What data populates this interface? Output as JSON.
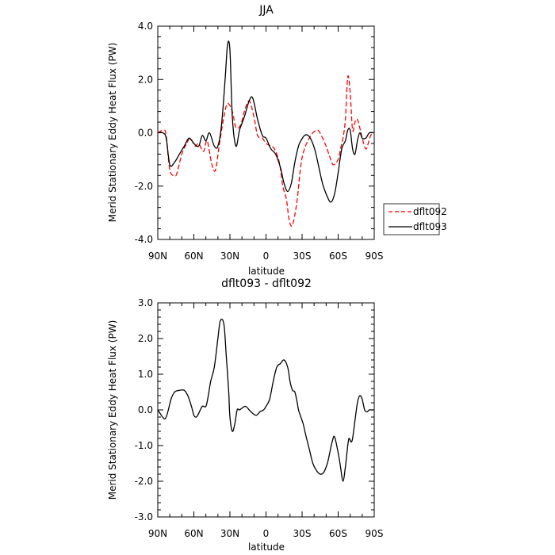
{
  "chart_data": [
    {
      "type": "line",
      "title": "JJA",
      "xlabel": "latitude",
      "ylabel": "Merid Stationary Eddy Heat Flux (PW)",
      "xlim": [
        -90,
        90
      ],
      "ylim": [
        -4,
        4
      ],
      "x_ticks": [
        -90,
        -60,
        -30,
        0,
        30,
        60,
        90
      ],
      "x_tick_labels": [
        "90N",
        "60N",
        "30N",
        "0",
        "30S",
        "60S",
        "90S"
      ],
      "y_ticks": [
        -4,
        -2,
        0,
        2,
        4
      ],
      "y_tick_labels": [
        "-4.0",
        "-2.0",
        "0.0",
        "2.0",
        "4.0"
      ],
      "legend_position": "right",
      "series": [
        {
          "name": "dflt092",
          "color": "#ff0000",
          "dash": "dashed",
          "x": [
            -90,
            -85,
            -83,
            -80,
            -76,
            -74,
            -70,
            -66,
            -63,
            -59,
            -56,
            -52,
            -49,
            -45,
            -42,
            -39,
            -35,
            -32,
            -28,
            -25,
            -21,
            -18,
            -14,
            -10,
            -7,
            -3,
            0,
            4,
            7,
            11,
            14,
            17,
            19,
            21,
            23,
            26,
            29,
            32,
            36,
            39,
            43,
            46,
            50,
            53,
            56,
            60,
            62,
            64,
            66,
            68,
            70,
            72,
            74,
            76,
            79,
            80,
            83,
            85,
            87,
            90
          ],
          "y": [
            0.0,
            0.1,
            -0.1,
            -1.4,
            -1.6,
            -1.5,
            -0.8,
            -0.4,
            -0.2,
            -0.5,
            -0.4,
            -0.7,
            -0.3,
            -1.2,
            -1.4,
            -0.5,
            0.6,
            1.1,
            0.8,
            0.2,
            0.3,
            0.8,
            1.2,
            0.6,
            -0.1,
            -0.2,
            -0.4,
            -0.5,
            -0.6,
            -1.1,
            -2.0,
            -2.5,
            -3.2,
            -3.5,
            -3.3,
            -2.5,
            -1.2,
            -0.6,
            -0.2,
            0.0,
            0.1,
            -0.1,
            -0.5,
            -0.9,
            -1.2,
            -1.0,
            -0.6,
            -0.2,
            0.5,
            2.1,
            1.5,
            0.1,
            0.4,
            0.5,
            0.0,
            -0.2,
            -0.6,
            -0.4,
            -0.1,
            0.0
          ]
        },
        {
          "name": "dflt093",
          "color": "#000000",
          "dash": "solid",
          "x": [
            -90,
            -86,
            -83,
            -80,
            -76,
            -72,
            -68,
            -64,
            -60,
            -56,
            -53,
            -50,
            -47,
            -43,
            -40,
            -37,
            -34,
            -32,
            -30,
            -28,
            -25,
            -22,
            -18,
            -14,
            -11,
            -7,
            -3,
            0,
            4,
            8,
            12,
            15,
            18,
            21,
            24,
            27,
            29,
            32,
            35,
            38,
            41,
            44,
            47,
            51,
            54,
            57,
            60,
            63,
            66,
            68,
            70,
            72,
            74,
            76,
            78,
            80,
            83,
            86,
            90
          ],
          "y": [
            0.0,
            0.0,
            -0.2,
            -1.2,
            -1.1,
            -0.8,
            -0.5,
            -0.2,
            -0.4,
            -0.5,
            -0.1,
            -0.3,
            0.0,
            -0.5,
            -0.5,
            0.3,
            2.0,
            3.3,
            3.1,
            0.6,
            -0.5,
            0.1,
            0.6,
            1.2,
            1.3,
            0.5,
            -0.1,
            -0.2,
            -0.6,
            -0.8,
            -1.3,
            -1.9,
            -2.2,
            -1.9,
            -1.1,
            -0.5,
            -0.3,
            -0.1,
            -0.1,
            -0.3,
            -0.7,
            -1.3,
            -1.9,
            -2.4,
            -2.6,
            -2.3,
            -1.5,
            -0.6,
            -0.3,
            0.1,
            0.1,
            -0.6,
            -0.8,
            -0.3,
            0.0,
            -0.2,
            -0.2,
            0.0,
            0.0
          ]
        }
      ]
    },
    {
      "type": "line",
      "title": "dflt093 - dflt092",
      "xlabel": "latitude",
      "ylabel": "Merid Stationary Eddy Heat Flux (PW)",
      "xlim": [
        -90,
        90
      ],
      "ylim": [
        -3,
        3
      ],
      "x_ticks": [
        -90,
        -60,
        -30,
        0,
        30,
        60,
        90
      ],
      "x_tick_labels": [
        "90N",
        "60N",
        "30N",
        "0",
        "30S",
        "60S",
        "90S"
      ],
      "y_ticks": [
        -3,
        -2,
        -1,
        0,
        1,
        2,
        3
      ],
      "y_tick_labels": [
        "-3.0",
        "-2.0",
        "-1.0",
        "0.0",
        "1.0",
        "2.0",
        "3.0"
      ],
      "series": [
        {
          "color": "#000000",
          "dash": "solid",
          "x": [
            -90,
            -88,
            -86,
            -84,
            -82,
            -79,
            -76,
            -72,
            -68,
            -65,
            -62,
            -60,
            -58,
            -56,
            -53,
            -50,
            -48,
            -46,
            -43,
            -40,
            -38,
            -35,
            -33,
            -31,
            -30,
            -28,
            -26,
            -24,
            -22,
            -20,
            -17,
            -14,
            -11,
            -8,
            -5,
            -2,
            0,
            3,
            6,
            9,
            12,
            15,
            18,
            20,
            22,
            24,
            26,
            27,
            29,
            31,
            33,
            36,
            39,
            42,
            45,
            48,
            51,
            53,
            55,
            57,
            60,
            62,
            64,
            66,
            68,
            69,
            70,
            71,
            72,
            74,
            76,
            78,
            80,
            82,
            84,
            86,
            88,
            90
          ],
          "y": [
            0.0,
            -0.1,
            -0.2,
            -0.25,
            -0.1,
            0.3,
            0.5,
            0.55,
            0.55,
            0.4,
            0.1,
            -0.15,
            -0.2,
            -0.1,
            0.1,
            0.1,
            0.4,
            0.8,
            1.2,
            2.0,
            2.5,
            2.4,
            1.5,
            0.5,
            -0.2,
            -0.6,
            -0.4,
            0.0,
            0.0,
            0.05,
            0.1,
            0.0,
            -0.1,
            -0.15,
            -0.05,
            0.0,
            0.1,
            0.3,
            0.8,
            1.2,
            1.3,
            1.4,
            1.2,
            0.8,
            0.55,
            0.5,
            0.2,
            0.0,
            -0.2,
            -0.4,
            -0.7,
            -1.1,
            -1.5,
            -1.7,
            -1.8,
            -1.75,
            -1.5,
            -1.2,
            -0.9,
            -0.75,
            -1.2,
            -1.6,
            -2.0,
            -1.6,
            -1.0,
            -0.8,
            -0.85,
            -0.9,
            -0.8,
            -0.3,
            0.2,
            0.4,
            0.3,
            0.0,
            -0.05,
            0.0,
            0.0,
            0.0
          ]
        }
      ]
    }
  ]
}
